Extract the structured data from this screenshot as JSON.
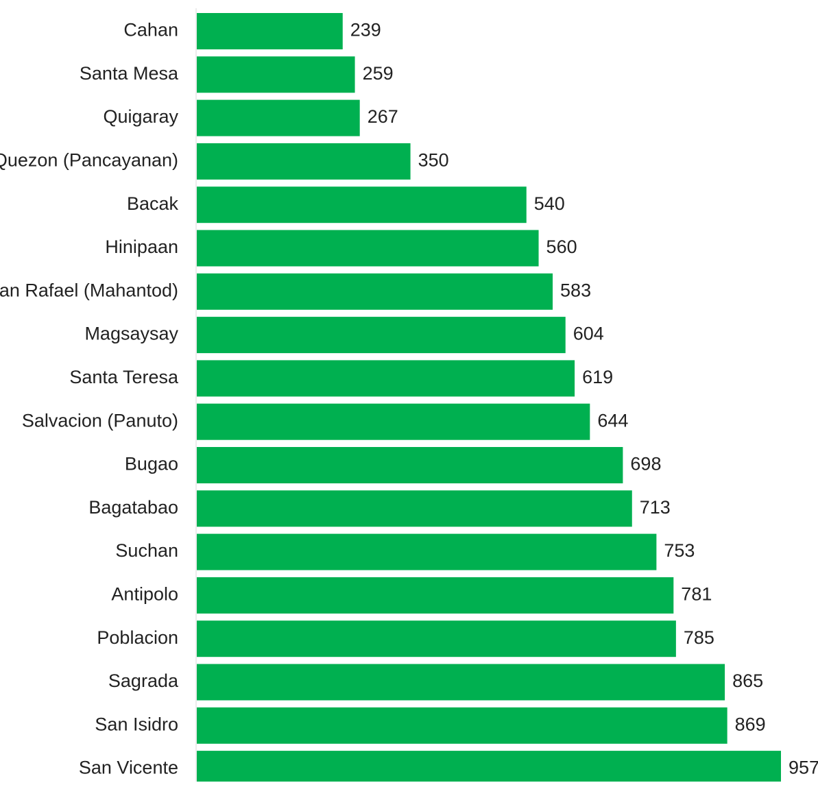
{
  "chart_data": {
    "type": "bar",
    "orientation": "horizontal",
    "title": "",
    "xlabel": "",
    "ylabel": "",
    "xlim": [
      0,
      957
    ],
    "grid": false,
    "legend": "none",
    "colors": {
      "bar": "#00b050",
      "axis": "#d9d9d9",
      "text": "#222222"
    },
    "categories": [
      "Cahan",
      "Santa Mesa",
      "Quigaray",
      "Quezon (Pancayanan)",
      "Bacak",
      "Hinipaan",
      "San Rafael (Mahantod)",
      "Magsaysay",
      "Santa Teresa",
      "Salvacion (Panuto)",
      "Bugao",
      "Bagatabao",
      "Suchan",
      "Antipolo",
      "Poblacion",
      "Sagrada",
      "San Isidro",
      "San Vicente"
    ],
    "values": [
      239,
      259,
      267,
      350,
      540,
      560,
      583,
      604,
      619,
      644,
      698,
      713,
      753,
      781,
      785,
      865,
      869,
      957
    ]
  }
}
